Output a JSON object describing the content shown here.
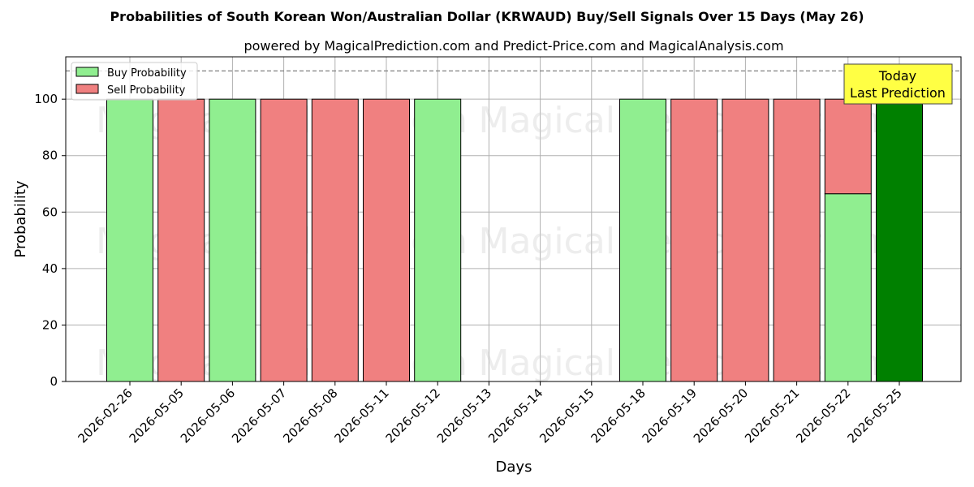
{
  "chart_data": {
    "type": "bar",
    "title": "Probabilities of South Korean Won/Australian Dollar (KRWAUD) Buy/Sell Signals Over 15 Days (May 26)",
    "subtitle": "powered by MagicalPrediction.com and Predict-Price.com and MagicalAnalysis.com",
    "xlabel": "Days",
    "ylabel": "Probability",
    "ylim": [
      0,
      115
    ],
    "yticks": [
      "0",
      "20",
      "40",
      "60",
      "80",
      "100"
    ],
    "grid": true,
    "legend_position": "top-left",
    "categories": [
      "2026-02-26",
      "2026-05-05",
      "2026-05-06",
      "2026-05-07",
      "2026-05-08",
      "2026-05-11",
      "2026-05-12",
      "2026-05-13",
      "2026-05-14",
      "2026-05-15",
      "2026-05-18",
      "2026-05-19",
      "2026-05-20",
      "2026-05-21",
      "2026-05-22",
      "2026-05-25"
    ],
    "series": [
      {
        "name": "Buy Probability",
        "color": "#90ee90",
        "values": [
          100,
          0,
          100,
          0,
          0,
          0,
          100,
          0,
          0,
          0,
          100,
          0,
          0,
          0,
          66.5,
          100
        ]
      },
      {
        "name": "Sell Probability",
        "color": "#f08080",
        "values": [
          0,
          100,
          0,
          100,
          100,
          100,
          0,
          0,
          0,
          0,
          0,
          100,
          100,
          100,
          33.5,
          0
        ]
      }
    ],
    "highlight": {
      "index": 15,
      "color": "#008000"
    },
    "reference_line": {
      "y": 110,
      "style": "dashed",
      "color": "#808080"
    },
    "annotation": {
      "line1": "Today",
      "line2": "Last Prediction",
      "color": "#ffff44"
    },
    "watermarks": [
      "MagicalAnalysis.com",
      "MagicalPrediction.com"
    ]
  }
}
